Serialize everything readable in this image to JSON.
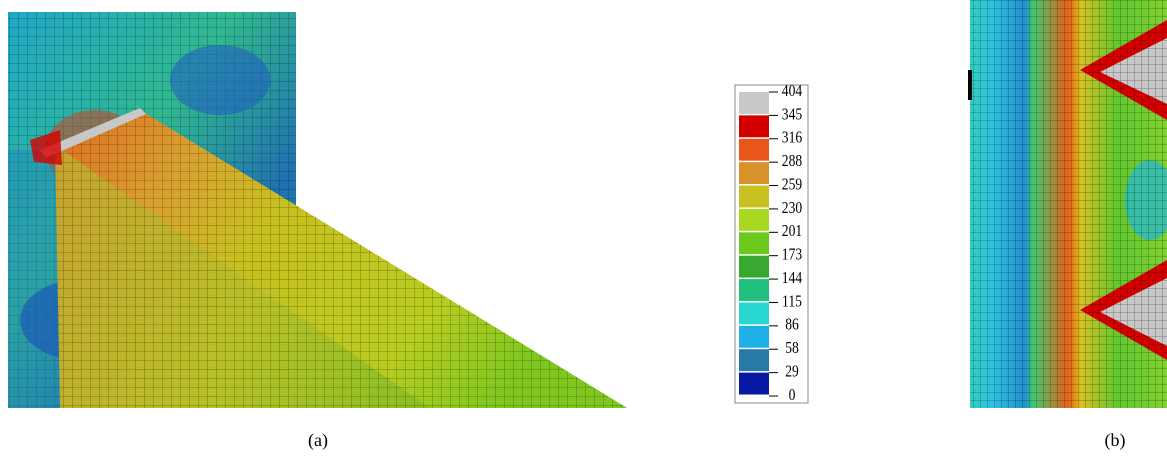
{
  "legend": {
    "labels": [
      404,
      345,
      316,
      288,
      259,
      230,
      201,
      173,
      144,
      115,
      86,
      58,
      29,
      0
    ],
    "colors": [
      "#c8c8c8",
      "#d40000",
      "#e8561a",
      "#d8922c",
      "#c8c020",
      "#a8d820",
      "#6cc81c",
      "#38a830",
      "#20c07c",
      "#28d8d0",
      "#20b0e8",
      "#2878a8",
      "#0818a0"
    ]
  },
  "captions": [
    "(a)",
    "(b)"
  ]
}
